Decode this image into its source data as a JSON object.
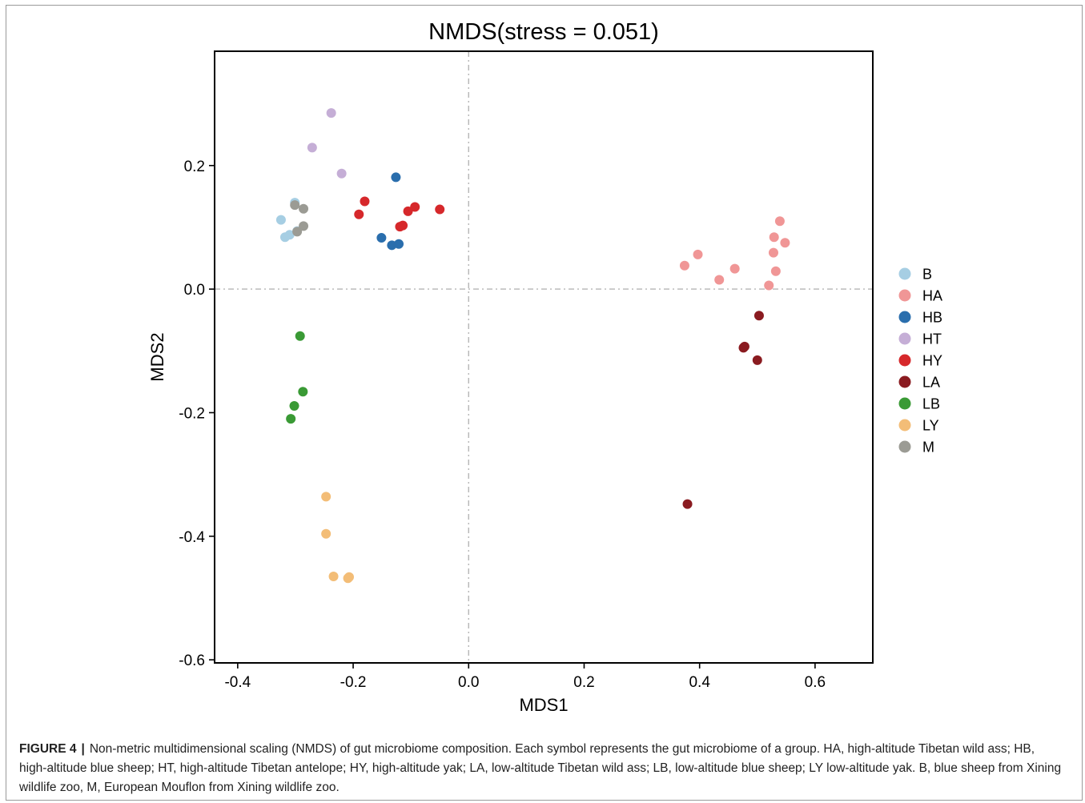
{
  "chart_data": {
    "type": "scatter",
    "title": "NMDS(stress = 0.051)",
    "xlabel": "MDS1",
    "ylabel": "MDS2",
    "xlim": [
      -0.44,
      0.7
    ],
    "ylim": [
      -0.605,
      0.385
    ],
    "xticks": [
      -0.4,
      -0.2,
      0.0,
      0.2,
      0.4,
      0.6
    ],
    "xtick_labels": [
      "-0.4",
      "-0.2",
      "0.0",
      "0.2",
      "0.4",
      "0.6"
    ],
    "yticks": [
      0.2,
      0.0,
      -0.2,
      -0.4,
      -0.6
    ],
    "ytick_labels": [
      "0.2",
      "0.0",
      "-0.2",
      "-0.4",
      "-0.6"
    ],
    "reference_lines": {
      "x": 0.0,
      "y": 0.0,
      "style": "dash-dot"
    },
    "grid": false,
    "legend_position": "right",
    "series": [
      {
        "name": "B",
        "color": "#a6cee3",
        "points": [
          [
            -0.325,
            0.112
          ],
          [
            -0.301,
            0.14
          ],
          [
            -0.318,
            0.084
          ],
          [
            -0.31,
            0.088
          ],
          [
            -0.297,
            0.094
          ]
        ]
      },
      {
        "name": "HA",
        "color": "#f09696",
        "points": [
          [
            0.539,
            0.11
          ],
          [
            0.529,
            0.084
          ],
          [
            0.548,
            0.075
          ],
          [
            0.528,
            0.059
          ],
          [
            0.397,
            0.056
          ],
          [
            0.374,
            0.038
          ],
          [
            0.461,
            0.033
          ],
          [
            0.532,
            0.029
          ],
          [
            0.434,
            0.015
          ],
          [
            0.52,
            0.006
          ]
        ]
      },
      {
        "name": "HB",
        "color": "#2a6ead",
        "points": [
          [
            -0.126,
            0.181
          ],
          [
            -0.151,
            0.083
          ],
          [
            -0.133,
            0.071
          ],
          [
            -0.121,
            0.073
          ]
        ]
      },
      {
        "name": "HT",
        "color": "#c5aed6",
        "points": [
          [
            -0.238,
            0.285
          ],
          [
            -0.271,
            0.229
          ],
          [
            -0.22,
            0.187
          ]
        ]
      },
      {
        "name": "HY",
        "color": "#d6282b",
        "points": [
          [
            -0.18,
            0.142
          ],
          [
            -0.19,
            0.121
          ],
          [
            -0.093,
            0.133
          ],
          [
            -0.05,
            0.129
          ],
          [
            -0.105,
            0.126
          ],
          [
            -0.114,
            0.103
          ],
          [
            -0.119,
            0.101
          ]
        ]
      },
      {
        "name": "LA",
        "color": "#8a1b20",
        "points": [
          [
            0.503,
            -0.043
          ],
          [
            0.476,
            -0.095
          ],
          [
            0.478,
            -0.093
          ],
          [
            0.5,
            -0.115
          ],
          [
            0.379,
            -0.348
          ]
        ]
      },
      {
        "name": "LB",
        "color": "#3a9a35",
        "points": [
          [
            -0.292,
            -0.076
          ],
          [
            -0.287,
            -0.166
          ],
          [
            -0.302,
            -0.189
          ],
          [
            -0.308,
            -0.21
          ]
        ]
      },
      {
        "name": "LY",
        "color": "#f3bd77",
        "points": [
          [
            -0.247,
            -0.336
          ],
          [
            -0.247,
            -0.396
          ],
          [
            -0.234,
            -0.465
          ],
          [
            -0.207,
            -0.466
          ],
          [
            -0.209,
            -0.468
          ]
        ]
      },
      {
        "name": "M",
        "color": "#9b9b94",
        "points": [
          [
            -0.301,
            0.136
          ],
          [
            -0.286,
            0.13
          ],
          [
            -0.286,
            0.102
          ],
          [
            -0.297,
            0.093
          ]
        ]
      }
    ]
  },
  "caption": {
    "label": "FIGURE 4",
    "separator": "|",
    "text": "Non-metric multidimensional scaling (NMDS) of gut microbiome composition. Each symbol represents the gut microbiome of a group. HA, high-altitude Tibetan wild ass; HB, high-altitude blue sheep; HT, high-altitude Tibetan antelope; HY, high-altitude yak; LA, low-altitude Tibetan wild ass; LB, low-altitude blue sheep; LY low-altitude yak. B, blue sheep from Xining wildlife zoo, M, European Mouflon from Xining wildlife zoo."
  }
}
